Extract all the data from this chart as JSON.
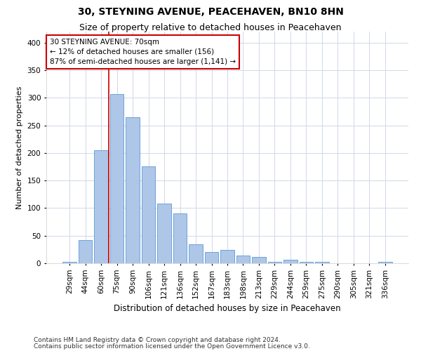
{
  "title1": "30, STEYNING AVENUE, PEACEHAVEN, BN10 8HN",
  "title2": "Size of property relative to detached houses in Peacehaven",
  "xlabel": "Distribution of detached houses by size in Peacehaven",
  "ylabel": "Number of detached properties",
  "categories": [
    "29sqm",
    "44sqm",
    "60sqm",
    "75sqm",
    "90sqm",
    "106sqm",
    "121sqm",
    "136sqm",
    "152sqm",
    "167sqm",
    "183sqm",
    "198sqm",
    "213sqm",
    "229sqm",
    "244sqm",
    "259sqm",
    "275sqm",
    "290sqm",
    "305sqm",
    "321sqm",
    "336sqm"
  ],
  "values": [
    3,
    42,
    205,
    307,
    265,
    176,
    108,
    90,
    35,
    20,
    24,
    14,
    11,
    3,
    6,
    2,
    2,
    0,
    0,
    0,
    3
  ],
  "bar_color": "#aec6e8",
  "bar_edge_color": "#5b9bd5",
  "annotation_line1": "30 STEYNING AVENUE: 70sqm",
  "annotation_line2": "← 12% of detached houses are smaller (156)",
  "annotation_line3": "87% of semi-detached houses are larger (1,141) →",
  "vline_color": "#cc0000",
  "annotation_box_color": "#ffffff",
  "annotation_box_edge": "#cc0000",
  "footer1": "Contains HM Land Registry data © Crown copyright and database right 2024.",
  "footer2": "Contains public sector information licensed under the Open Government Licence v3.0.",
  "background_color": "#ffffff",
  "grid_color": "#d0d8e8",
  "ylim": [
    0,
    420
  ],
  "title1_fontsize": 10,
  "title2_fontsize": 9,
  "xlabel_fontsize": 8.5,
  "ylabel_fontsize": 8,
  "tick_fontsize": 7.5,
  "annotation_fontsize": 7.5,
  "footer_fontsize": 6.5,
  "vline_x": 2.5
}
